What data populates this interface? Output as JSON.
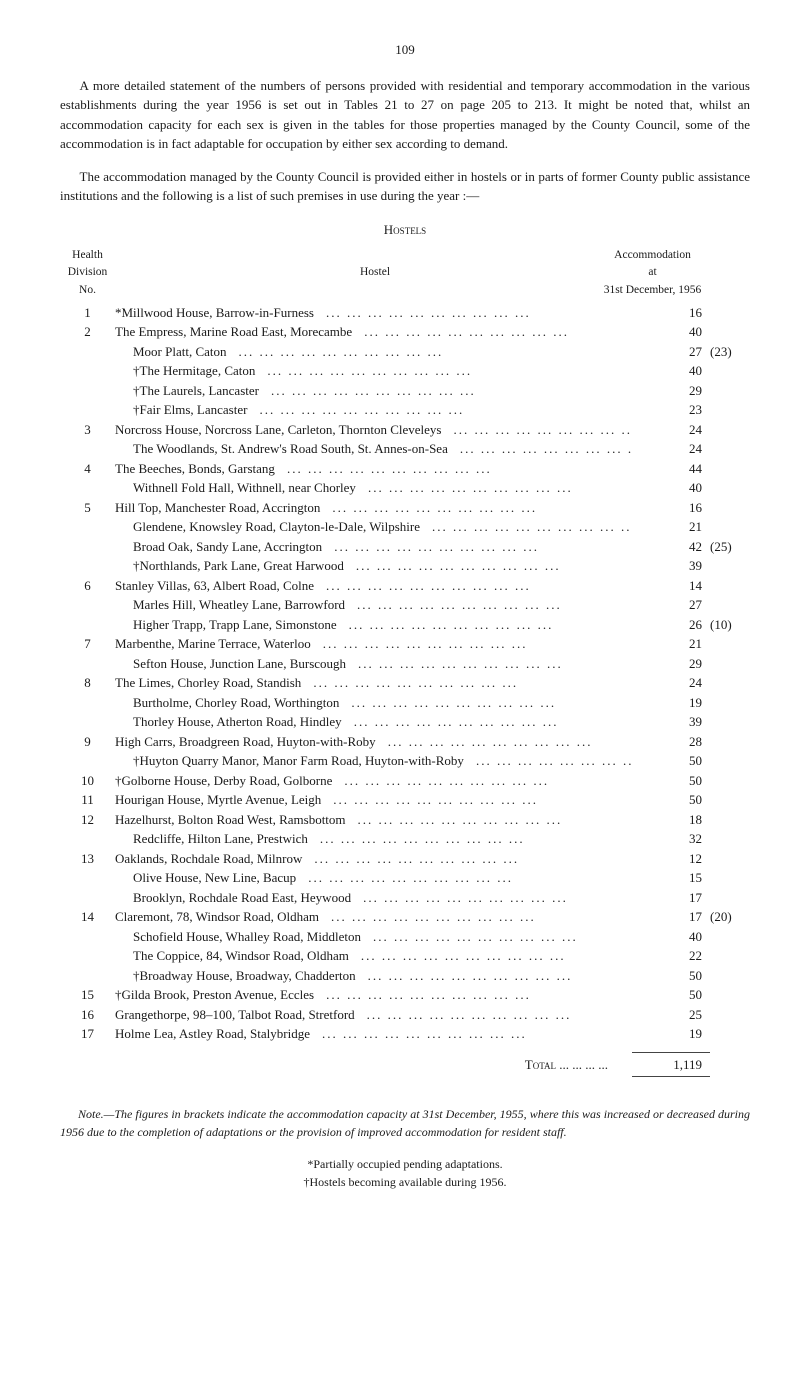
{
  "page_number": "109",
  "intro_p1": "A more detailed statement of the numbers of persons provided with residential and temporary accommodation in the various establishments during the year 1956 is set out in Tables 21 to 27 on page 205 to 213. It might be noted that, whilst an accommodation capacity for each sex is given in the tables for those properties managed by the County Council, some of the accommodation is in fact adaptable for occupation by either sex according to demand.",
  "intro_p2": "The accommodation managed by the County Council is provided either in hostels or in parts of former County public assistance institutions and the following is a list of such premises in use during the year :—",
  "hostels_heading": "Hostels",
  "header": {
    "health": "Health",
    "division": "Division",
    "no": "No.",
    "hostel": "Hostel",
    "accommodation": "Accommodation",
    "at": "at",
    "date": "31st December, 1956"
  },
  "rows": [
    {
      "no": "1",
      "label": "*Millwood House, Barrow-in-Furness",
      "acc": "16",
      "ext": ""
    },
    {
      "no": "2",
      "label": "The Empress, Marine Road East, Morecambe",
      "acc": "40",
      "ext": ""
    },
    {
      "no": "",
      "label": "Moor Platt, Caton",
      "acc": "27",
      "ext": "(23)",
      "indent": true
    },
    {
      "no": "",
      "label": "†The Hermitage, Caton",
      "acc": "40",
      "ext": "",
      "indent": true
    },
    {
      "no": "",
      "label": "†The Laurels, Lancaster",
      "acc": "29",
      "ext": "",
      "indent": true
    },
    {
      "no": "",
      "label": "†Fair Elms, Lancaster",
      "acc": "23",
      "ext": "",
      "indent": true
    },
    {
      "no": "3",
      "label": "Norcross House, Norcross Lane, Carleton, Thornton Cleveleys",
      "acc": "24",
      "ext": ""
    },
    {
      "no": "",
      "label": "The Woodlands, St. Andrew's Road South, St. Annes-on-Sea",
      "acc": "24",
      "ext": "",
      "indent": true
    },
    {
      "no": "4",
      "label": "The Beeches, Bonds, Garstang",
      "acc": "44",
      "ext": ""
    },
    {
      "no": "",
      "label": "Withnell Fold Hall, Withnell, near Chorley",
      "acc": "40",
      "ext": "",
      "indent": true
    },
    {
      "no": "5",
      "label": "Hill Top, Manchester Road, Accrington",
      "acc": "16",
      "ext": ""
    },
    {
      "no": "",
      "label": "Glendene, Knowsley Road, Clayton-le-Dale, Wilpshire",
      "acc": "21",
      "ext": "",
      "indent": true
    },
    {
      "no": "",
      "label": "Broad Oak, Sandy Lane, Accrington",
      "acc": "42",
      "ext": "(25)",
      "indent": true
    },
    {
      "no": "",
      "label": "†Northlands, Park Lane, Great Harwood",
      "acc": "39",
      "ext": "",
      "indent": true
    },
    {
      "no": "6",
      "label": "Stanley Villas, 63, Albert Road, Colne",
      "acc": "14",
      "ext": ""
    },
    {
      "no": "",
      "label": "Marles Hill, Wheatley Lane, Barrowford",
      "acc": "27",
      "ext": "",
      "indent": true
    },
    {
      "no": "",
      "label": "Higher Trapp, Trapp Lane, Simonstone",
      "acc": "26",
      "ext": "(10)",
      "indent": true
    },
    {
      "no": "7",
      "label": "Marbenthe, Marine Terrace, Waterloo",
      "acc": "21",
      "ext": ""
    },
    {
      "no": "",
      "label": "Sefton House, Junction Lane, Burscough",
      "acc": "29",
      "ext": "",
      "indent": true
    },
    {
      "no": "8",
      "label": "The Limes, Chorley Road, Standish",
      "acc": "24",
      "ext": ""
    },
    {
      "no": "",
      "label": "Burtholme, Chorley Road, Worthington",
      "acc": "19",
      "ext": "",
      "indent": true
    },
    {
      "no": "",
      "label": "Thorley House, Atherton Road, Hindley",
      "acc": "39",
      "ext": "",
      "indent": true
    },
    {
      "no": "9",
      "label": "High Carrs, Broadgreen Road, Huyton-with-Roby",
      "acc": "28",
      "ext": ""
    },
    {
      "no": "",
      "label": "†Huyton Quarry Manor, Manor Farm Road, Huyton-with-Roby",
      "acc": "50",
      "ext": "",
      "indent": true
    },
    {
      "no": "10",
      "label": "†Golborne House, Derby Road, Golborne",
      "acc": "50",
      "ext": ""
    },
    {
      "no": "11",
      "label": "Hourigan House, Myrtle Avenue, Leigh",
      "acc": "50",
      "ext": ""
    },
    {
      "no": "12",
      "label": "Hazelhurst, Bolton Road West, Ramsbottom",
      "acc": "18",
      "ext": ""
    },
    {
      "no": "",
      "label": "Redcliffe, Hilton Lane, Prestwich",
      "acc": "32",
      "ext": "",
      "indent": true
    },
    {
      "no": "13",
      "label": "Oaklands, Rochdale Road, Milnrow",
      "acc": "12",
      "ext": ""
    },
    {
      "no": "",
      "label": "Olive House, New Line, Bacup",
      "acc": "15",
      "ext": "",
      "indent": true
    },
    {
      "no": "",
      "label": "Brooklyn, Rochdale Road East, Heywood",
      "acc": "17",
      "ext": "",
      "indent": true
    },
    {
      "no": "14",
      "label": "Claremont, 78, Windsor Road, Oldham",
      "acc": "17",
      "ext": "(20)"
    },
    {
      "no": "",
      "label": "Schofield House, Whalley Road, Middleton",
      "acc": "40",
      "ext": "",
      "indent": true
    },
    {
      "no": "",
      "label": "The Coppice, 84, Windsor Road, Oldham",
      "acc": "22",
      "ext": "",
      "indent": true
    },
    {
      "no": "",
      "label": "†Broadway House, Broadway, Chadderton",
      "acc": "50",
      "ext": "",
      "indent": true
    },
    {
      "no": "15",
      "label": "†Gilda Brook, Preston Avenue, Eccles",
      "acc": "50",
      "ext": ""
    },
    {
      "no": "16",
      "label": "Grangethorpe, 98–100, Talbot Road, Stretford",
      "acc": "25",
      "ext": ""
    },
    {
      "no": "17",
      "label": "Holme Lea, Astley Road, Stalybridge",
      "acc": "19",
      "ext": ""
    }
  ],
  "total_label": "Total ...   ...   ...   ...",
  "total_value": "1,119",
  "note_text": "Note.—The figures in brackets indicate the accommodation capacity at 31st December, 1955, where this was increased or decreased during 1956 due to the completion of adaptations or the provision of improved accommodation for resident staff.",
  "footnote1": "*Partially occupied pending adaptations.",
  "footnote2": "†Hostels becoming available during 1956."
}
